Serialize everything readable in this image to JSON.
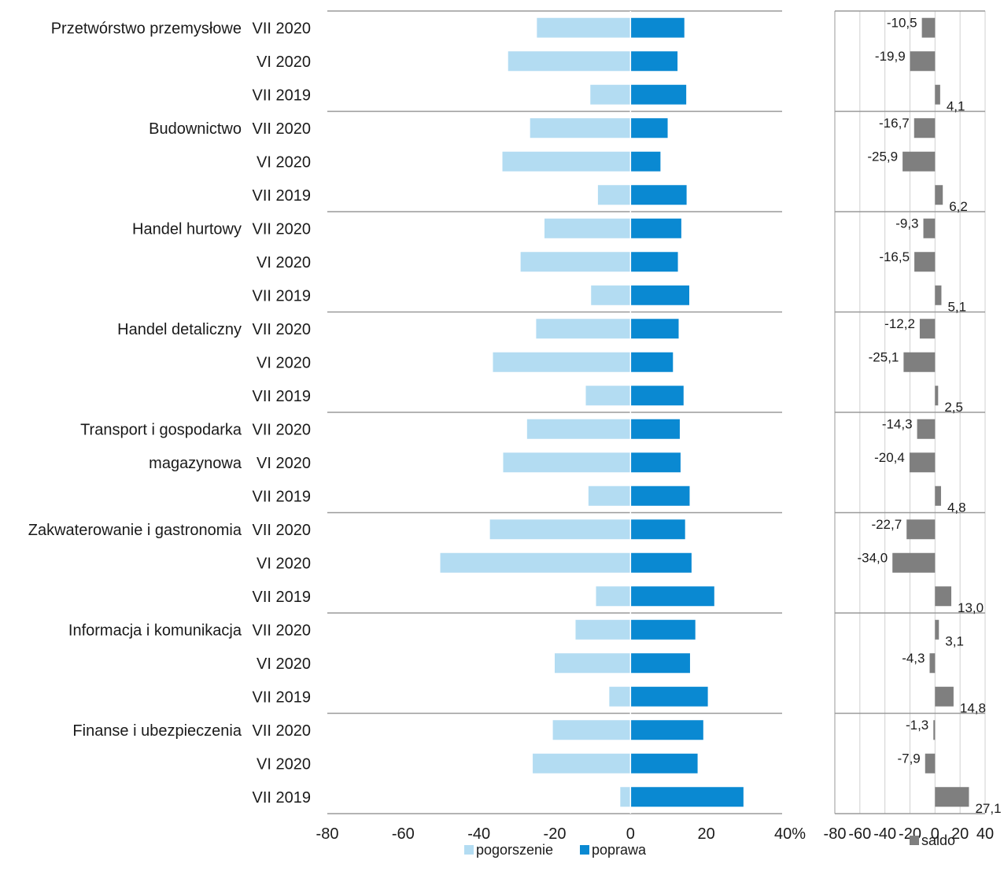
{
  "colors": {
    "pogorszenie": "#b3dcf2",
    "poprawa": "#0a89d2",
    "saldo": "#7f7f7f",
    "separator": "#9a9a9a",
    "grid": "#d0d0d0"
  },
  "chart_data": [
    {
      "type": "bar",
      "orientation": "horizontal",
      "stacked": "diverging",
      "sectors": [
        "Przetwórstwo przemysłowe",
        "Budownictwo",
        "Handel hurtowy",
        "Handel detaliczny",
        "Transport i gospodarka magazynowa",
        "Zakwaterowanie i gastronomia",
        "Informacja i komunikacja",
        "Finanse i ubezpieczenia"
      ],
      "sector_label_lines": [
        [
          "Przetwórstwo przemysłowe"
        ],
        [
          "Budownictwo"
        ],
        [
          "Handel hurtowy"
        ],
        [
          "Handel detaliczny"
        ],
        [
          "Transport i gospodarka",
          "magazynowa"
        ],
        [
          "Zakwaterowanie i gastronomia"
        ],
        [
          "Informacja i komunikacja"
        ],
        [
          "Finanse i ubezpieczenia"
        ]
      ],
      "periods": [
        "VII 2020",
        "VI 2020",
        "VII 2019"
      ],
      "series": [
        {
          "name": "pogorszenie",
          "values": [
            [
              -24.7,
              -32.3,
              -10.6
            ],
            [
              -26.5,
              -33.8,
              -8.6
            ],
            [
              -22.7,
              -29.0,
              -10.4
            ],
            [
              -24.9,
              -36.3,
              -11.8
            ],
            [
              -27.3,
              -33.6,
              -11.1
            ],
            [
              -37.1,
              -50.2,
              -9.1
            ],
            [
              -14.5,
              -20.0,
              -5.6
            ],
            [
              -20.5,
              -25.8,
              -2.7
            ]
          ]
        },
        {
          "name": "poprawa",
          "values": [
            [
              14.2,
              12.4,
              14.7
            ],
            [
              9.8,
              7.9,
              14.8
            ],
            [
              13.4,
              12.5,
              15.5
            ],
            [
              12.7,
              11.2,
              14.0
            ],
            [
              13.0,
              13.2,
              15.6
            ],
            [
              14.4,
              16.1,
              22.1
            ],
            [
              17.1,
              15.7,
              20.4
            ],
            [
              19.2,
              17.7,
              29.8
            ]
          ]
        }
      ],
      "xticks": [
        "-80",
        "-60",
        "-40",
        "-20",
        "0",
        "20",
        "40%"
      ],
      "xlim": [
        -80,
        40
      ],
      "legend_position": "bottom",
      "grid": false
    },
    {
      "type": "bar",
      "orientation": "horizontal",
      "series": [
        {
          "name": "saldo",
          "values": [
            [
              -10.5,
              -19.9,
              4.1
            ],
            [
              -16.7,
              -25.9,
              6.2
            ],
            [
              -9.3,
              -16.5,
              5.1
            ],
            [
              -12.2,
              -25.1,
              2.5
            ],
            [
              -14.3,
              -20.4,
              4.8
            ],
            [
              -22.7,
              -34.0,
              13.0
            ],
            [
              3.1,
              -4.3,
              14.8
            ],
            [
              -1.3,
              -7.9,
              27.1
            ]
          ]
        }
      ],
      "data_labels": [
        [
          "-10,5",
          "-19,9",
          "4,1"
        ],
        [
          "-16,7",
          "-25,9",
          "6,2"
        ],
        [
          "-9,3",
          "-16,5",
          "5,1"
        ],
        [
          "-12,2",
          "-25,1",
          "2,5"
        ],
        [
          "-14,3",
          "-20,4",
          "4,8"
        ],
        [
          "-22,7",
          "-34,0",
          "13,0"
        ],
        [
          "3,1",
          "-4,3",
          "14,8"
        ],
        [
          "-1,3",
          "-7,9",
          "27,1"
        ]
      ],
      "xticks": [
        "-80",
        "-60",
        "-40",
        "-20",
        "0",
        "20",
        "40"
      ],
      "xlim": [
        -80,
        40
      ],
      "legend_position": "bottom",
      "grid": true
    }
  ]
}
